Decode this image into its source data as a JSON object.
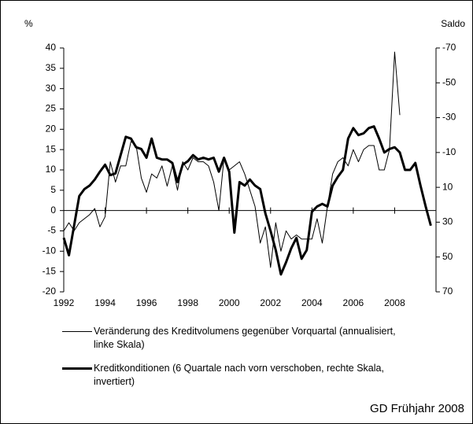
{
  "chart_data": {
    "type": "line",
    "y_label": "%",
    "y2_label": "Saldo",
    "xlim": [
      1992,
      2010
    ],
    "xticks": [
      1992,
      1994,
      1996,
      1998,
      2000,
      2002,
      2004,
      2006,
      2008
    ],
    "ylim": [
      -20,
      40
    ],
    "yticks": [
      -20,
      -15,
      -10,
      -5,
      0,
      5,
      10,
      15,
      20,
      25,
      30,
      35,
      40
    ],
    "y2lim": [
      -70,
      70
    ],
    "y2_inverted": true,
    "y2ticks": [
      -70,
      -50,
      -30,
      -10,
      10,
      30,
      50,
      70
    ],
    "series": [
      {
        "name": "Veränderung des Kreditvolumens gegenüber Vorquartal (annualisiert, linke Skala)",
        "color": "#000000",
        "width": 1,
        "x": [
          1992,
          1992.25,
          1992.5,
          1992.75,
          1993,
          1993.25,
          1993.5,
          1993.75,
          1994,
          1994.25,
          1994.5,
          1994.75,
          1995,
          1995.25,
          1995.5,
          1995.75,
          1996,
          1996.25,
          1996.5,
          1996.75,
          1997,
          1997.25,
          1997.5,
          1997.75,
          1998,
          1998.25,
          1998.5,
          1998.75,
          1999,
          1999.25,
          1999.5,
          1999.75,
          2000,
          2000.25,
          2000.5,
          2000.75,
          2001,
          2001.25,
          2001.5,
          2001.75,
          2002,
          2002.25,
          2002.5,
          2002.75,
          2003,
          2003.25,
          2003.5,
          2003.75,
          2004,
          2004.25,
          2004.5,
          2004.75,
          2005,
          2005.25,
          2005.5,
          2005.75,
          2006,
          2006.25,
          2006.5,
          2006.75,
          2007,
          2007.25,
          2007.5,
          2007.75,
          2008,
          2008.25
        ],
        "values": [
          -5,
          -3,
          -5,
          -3,
          -2,
          -1,
          0.5,
          -4,
          -1.5,
          12,
          7,
          11,
          11,
          17,
          16,
          8,
          4.5,
          9,
          8,
          11,
          6,
          11,
          5,
          12,
          10,
          13,
          12,
          12,
          11,
          7,
          0,
          13,
          10,
          11,
          12,
          9,
          5,
          1,
          -8,
          -4,
          -14,
          -3,
          -10,
          -5,
          -7,
          -6,
          -7,
          -7,
          -7,
          -2,
          -8,
          1,
          9,
          12,
          13,
          11,
          15,
          12,
          15,
          16,
          16,
          10,
          10,
          15,
          39,
          23.5
        ]
      },
      {
        "name": "Kreditkonditionen (6 Quartale nach vorn verschoben, rechte Skala, invertiert)",
        "color": "#000000",
        "width": 3,
        "axis": "y2",
        "x": [
          1992,
          1992.25,
          1992.5,
          1992.75,
          1993,
          1993.25,
          1993.5,
          1993.75,
          1994,
          1994.25,
          1994.5,
          1994.75,
          1995,
          1995.25,
          1995.5,
          1995.75,
          1996,
          1996.25,
          1996.5,
          1996.75,
          1997,
          1997.25,
          1997.5,
          1997.75,
          1998,
          1998.25,
          1998.5,
          1998.75,
          1999,
          1999.25,
          1999.5,
          1999.75,
          2000,
          2000.25,
          2000.5,
          2000.75,
          2001,
          2001.25,
          2001.5,
          2001.75,
          2002,
          2002.25,
          2002.5,
          2002.75,
          2003,
          2003.25,
          2003.5,
          2003.75,
          2004,
          2004.25,
          2004.5,
          2004.75,
          2005,
          2005.25,
          2005.5,
          2005.75,
          2006,
          2006.25,
          2006.5,
          2006.75,
          2007,
          2007.25,
          2007.5,
          2007.75,
          2008,
          2008.25,
          2008.5,
          2008.75,
          2009,
          2009.25,
          2009.5,
          2009.75
        ],
        "values": [
          39,
          49,
          32,
          15,
          11,
          9,
          5.5,
          1,
          -3,
          3,
          2,
          -8.5,
          -19,
          -18,
          -13,
          -12,
          -7,
          -18,
          -7,
          -6,
          -6,
          -4,
          7,
          -3,
          -5,
          -8.5,
          -6,
          -7,
          -6,
          -7,
          1,
          -7,
          1,
          36,
          7,
          9,
          5.5,
          9,
          11,
          25,
          35,
          46,
          60,
          53,
          45,
          39,
          51,
          46,
          24,
          21,
          19.5,
          21,
          9,
          4,
          0,
          -18,
          -24,
          -20,
          -21,
          -24,
          -25,
          -18,
          -10,
          -12,
          -13,
          -10,
          0,
          0,
          -4,
          9,
          21,
          32
        ]
      }
    ],
    "note": "GD Frühjahr 2008"
  }
}
